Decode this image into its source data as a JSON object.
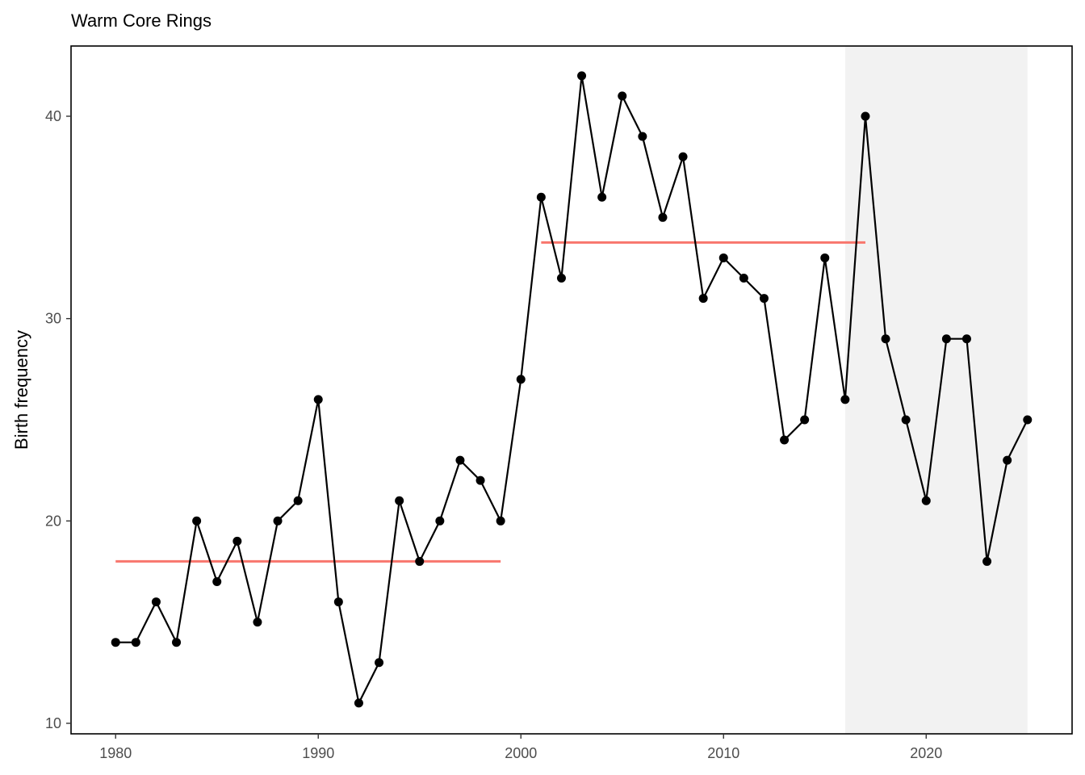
{
  "chart_data": {
    "type": "line",
    "title": "Warm Core Rings",
    "xlabel": "",
    "ylabel": "Birth frequency",
    "xlim": [
      1977.8,
      2027.2
    ],
    "ylim": [
      9.48,
      43.47
    ],
    "xticks": [
      1980,
      1990,
      2000,
      2010,
      2020
    ],
    "yticks": [
      10,
      20,
      30,
      40
    ],
    "grid": false,
    "x": [
      1980,
      1981,
      1982,
      1983,
      1984,
      1985,
      1986,
      1987,
      1988,
      1989,
      1990,
      1991,
      1992,
      1993,
      1994,
      1995,
      1996,
      1997,
      1998,
      1999,
      2000,
      2001,
      2002,
      2003,
      2004,
      2005,
      2006,
      2007,
      2008,
      2009,
      2010,
      2011,
      2012,
      2013,
      2014,
      2015,
      2016,
      2017,
      2018,
      2019,
      2020,
      2021,
      2022,
      2023,
      2024,
      2025
    ],
    "y": [
      14,
      14,
      16,
      14,
      20,
      17,
      19,
      15,
      20,
      21,
      26,
      16,
      11,
      13,
      21,
      18,
      20,
      23,
      22,
      20,
      27,
      36,
      32,
      42,
      36,
      41,
      39,
      35,
      38,
      31,
      33,
      32,
      31,
      24,
      25,
      33,
      26,
      40,
      29,
      25,
      21,
      29,
      29,
      18,
      23,
      25
    ],
    "line_color": "#000000",
    "segments": [
      {
        "x_start": 1980,
        "x_end": 1999,
        "value": 18.0,
        "color": "#F8766D"
      },
      {
        "x_start": 2001,
        "x_end": 2017,
        "value": 33.76,
        "color": "#F8766D"
      }
    ],
    "shaded_region": {
      "x_start": 2016,
      "x_end": 2025,
      "color": "#F2F2F2"
    }
  }
}
